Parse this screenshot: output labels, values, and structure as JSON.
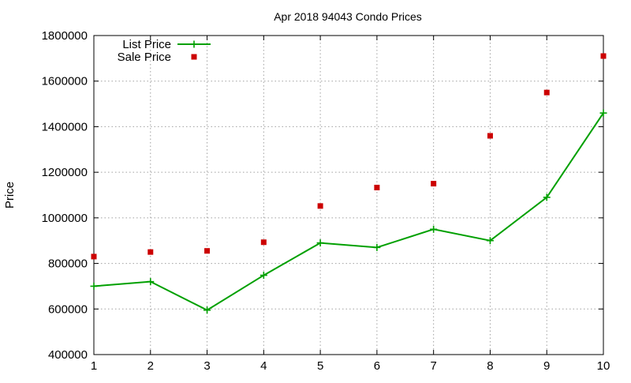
{
  "chart_data": {
    "type": "line",
    "title": "Apr 2018 94043 Condo Prices",
    "xlabel": "",
    "ylabel": "Price",
    "xlim": [
      1,
      10
    ],
    "ylim": [
      400000,
      1800000
    ],
    "x_ticks": [
      1,
      2,
      3,
      4,
      5,
      6,
      7,
      8,
      9,
      10
    ],
    "y_ticks": [
      400000,
      600000,
      800000,
      1000000,
      1200000,
      1400000,
      1600000,
      1800000
    ],
    "grid": true,
    "legend_position": "top-left",
    "x": [
      1,
      2,
      3,
      4,
      5,
      6,
      7,
      8,
      9,
      10
    ],
    "series": [
      {
        "name": "List Price",
        "style": "lines+points",
        "marker": "plus",
        "color": "#00a000",
        "values": [
          700000,
          720000,
          595000,
          748000,
          890000,
          870000,
          950000,
          900000,
          1090000,
          1460000
        ]
      },
      {
        "name": "Sale Price",
        "style": "points",
        "marker": "square",
        "color": "#cc0000",
        "values": [
          830000,
          850000,
          855000,
          893000,
          1052000,
          1133000,
          1150000,
          1360000,
          1550000,
          1710000
        ]
      }
    ]
  }
}
